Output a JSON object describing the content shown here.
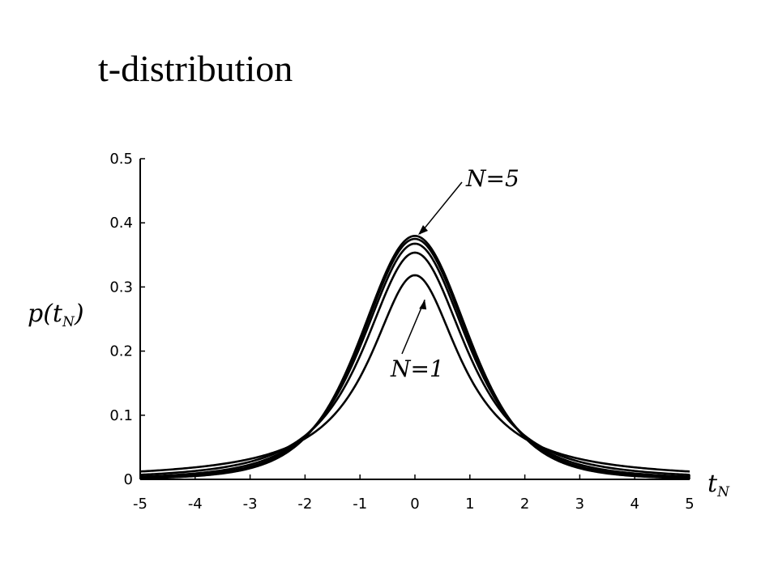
{
  "title": "t-distribution",
  "axis_labels": {
    "y_main": "p(t",
    "y_sub": "N",
    "y_close": ")",
    "x_main": "t",
    "x_sub": "N"
  },
  "chart_data": {
    "type": "line",
    "title": "t-distribution",
    "xlabel": "t_N",
    "ylabel": "p(t_N)",
    "xlim": [
      -5,
      5
    ],
    "ylim": [
      0,
      0.5
    ],
    "x_ticks": [
      "-5",
      "-4",
      "-3",
      "-2",
      "-1",
      "0",
      "1",
      "2",
      "3",
      "4",
      "5"
    ],
    "y_ticks": [
      "0",
      "0.1",
      "0.2",
      "0.3",
      "0.4",
      "0.5"
    ],
    "grid": false,
    "series": [
      {
        "dof": 1,
        "peak": 0.318
      },
      {
        "dof": 2,
        "peak": 0.354
      },
      {
        "dof": 3,
        "peak": 0.368
      },
      {
        "dof": 4,
        "peak": 0.375
      },
      {
        "dof": 5,
        "peak": 0.38
      }
    ],
    "annotations": [
      {
        "text": "N=5",
        "x": 0,
        "y": 0.38
      },
      {
        "text": "N=1",
        "x": 0.15,
        "y": 0.275
      }
    ]
  }
}
